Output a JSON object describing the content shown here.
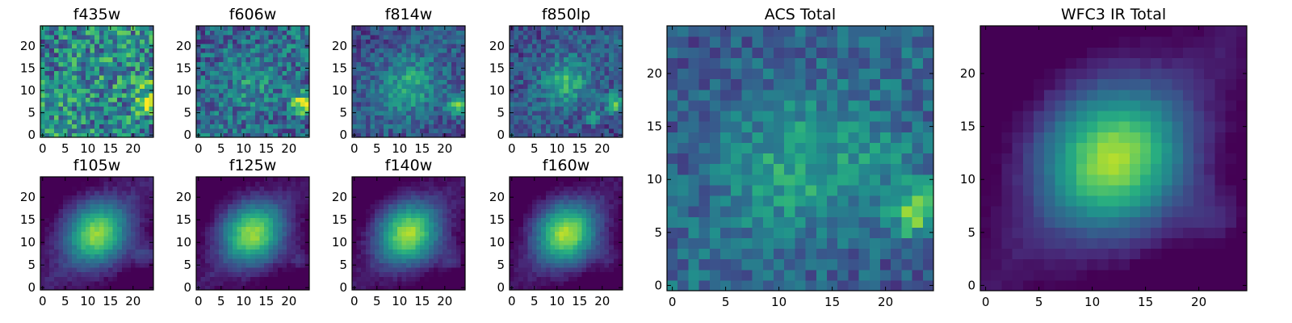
{
  "figure": {
    "background": "#ffffff",
    "colormap": "viridis",
    "colormap_stops": [
      "#440154",
      "#472d7b",
      "#3b528b",
      "#2c728e",
      "#21918c",
      "#28ae80",
      "#5ec962",
      "#addc30",
      "#fde725"
    ]
  },
  "chart_data": [
    {
      "type": "heatmap",
      "title": "f435w",
      "grid": [
        25,
        25
      ],
      "xticks": [
        0,
        5,
        10,
        15,
        20
      ],
      "yticks": [
        0,
        5,
        10,
        15,
        20
      ],
      "xlim": [
        -0.5,
        24.5
      ],
      "ylim": [
        -0.5,
        24.5
      ],
      "sources": [
        {
          "x": 23,
          "y": 7,
          "amp": 0.5,
          "sigma": 1.6
        },
        {
          "x": 23,
          "y": 11,
          "amp": 0.2,
          "sigma": 1.5
        }
      ],
      "noise": 0.3,
      "base": 0.5
    },
    {
      "type": "heatmap",
      "title": "f606w",
      "grid": [
        25,
        25
      ],
      "xticks": [
        0,
        5,
        10,
        15,
        20
      ],
      "yticks": [
        0,
        5,
        10,
        15,
        20
      ],
      "xlim": [
        -0.5,
        24.5
      ],
      "ylim": [
        -0.5,
        24.5
      ],
      "sources": [
        {
          "x": 23,
          "y": 7,
          "amp": 0.6,
          "sigma": 1.8
        },
        {
          "x": 12,
          "y": 11,
          "amp": 0.12,
          "sigma": 4
        }
      ],
      "noise": 0.22,
      "base": 0.38
    },
    {
      "type": "heatmap",
      "title": "f814w",
      "grid": [
        25,
        25
      ],
      "xticks": [
        0,
        5,
        10,
        15,
        20
      ],
      "yticks": [
        0,
        5,
        10,
        15,
        20
      ],
      "xlim": [
        -0.5,
        24.5
      ],
      "ylim": [
        -0.5,
        24.5
      ],
      "sources": [
        {
          "x": 23,
          "y": 7,
          "amp": 0.45,
          "sigma": 1.8
        },
        {
          "x": 12,
          "y": 11,
          "amp": 0.3,
          "sigma": 4.5
        }
      ],
      "noise": 0.15,
      "base": 0.3
    },
    {
      "type": "heatmap",
      "title": "f850lp",
      "grid": [
        25,
        25
      ],
      "xticks": [
        0,
        5,
        10,
        15,
        20
      ],
      "yticks": [
        0,
        5,
        10,
        15,
        20
      ],
      "xlim": [
        -0.5,
        24.5
      ],
      "ylim": [
        -0.5,
        24.5
      ],
      "sources": [
        {
          "x": 23,
          "y": 7,
          "amp": 0.5,
          "sigma": 1.6
        },
        {
          "x": 12,
          "y": 12,
          "amp": 0.35,
          "sigma": 3.5
        },
        {
          "x": 18,
          "y": 4,
          "amp": 0.35,
          "sigma": 1.0
        }
      ],
      "noise": 0.15,
      "base": 0.3
    },
    {
      "type": "heatmap",
      "title": "f105w",
      "grid": [
        25,
        25
      ],
      "xticks": [
        0,
        5,
        10,
        15,
        20
      ],
      "yticks": [
        0,
        5,
        10,
        15,
        20
      ],
      "xlim": [
        -0.5,
        24.5
      ],
      "ylim": [
        -0.5,
        24.5
      ],
      "sources": [
        {
          "x": 12,
          "y": 12,
          "amp": 0.75,
          "sigma": 5
        },
        {
          "x": 23,
          "y": 7,
          "amp": 0.25,
          "sigma": 2
        }
      ],
      "noise": 0.04,
      "base": 0.1
    },
    {
      "type": "heatmap",
      "title": "f125w",
      "grid": [
        25,
        25
      ],
      "xticks": [
        0,
        5,
        10,
        15,
        20
      ],
      "yticks": [
        0,
        5,
        10,
        15,
        20
      ],
      "xlim": [
        -0.5,
        24.5
      ],
      "ylim": [
        -0.5,
        24.5
      ],
      "sources": [
        {
          "x": 12,
          "y": 12,
          "amp": 0.78,
          "sigma": 5
        },
        {
          "x": 23,
          "y": 6,
          "amp": 0.22,
          "sigma": 2
        }
      ],
      "noise": 0.04,
      "base": 0.08
    },
    {
      "type": "heatmap",
      "title": "f140w",
      "grid": [
        25,
        25
      ],
      "xticks": [
        0,
        5,
        10,
        15,
        20
      ],
      "yticks": [
        0,
        5,
        10,
        15,
        20
      ],
      "xlim": [
        -0.5,
        24.5
      ],
      "ylim": [
        -0.5,
        24.5
      ],
      "sources": [
        {
          "x": 12,
          "y": 12,
          "amp": 0.8,
          "sigma": 5
        },
        {
          "x": 22,
          "y": 6,
          "amp": 0.2,
          "sigma": 2.2
        }
      ],
      "noise": 0.04,
      "base": 0.08
    },
    {
      "type": "heatmap",
      "title": "f160w",
      "grid": [
        25,
        25
      ],
      "xticks": [
        0,
        5,
        10,
        15,
        20
      ],
      "yticks": [
        0,
        5,
        10,
        15,
        20
      ],
      "xlim": [
        -0.5,
        24.5
      ],
      "ylim": [
        -0.5,
        24.5
      ],
      "sources": [
        {
          "x": 12,
          "y": 12,
          "amp": 0.82,
          "sigma": 5
        },
        {
          "x": 22,
          "y": 6,
          "amp": 0.18,
          "sigma": 2.2
        }
      ],
      "noise": 0.04,
      "base": 0.07
    },
    {
      "type": "heatmap",
      "title": "ACS Total",
      "grid": [
        25,
        25
      ],
      "xticks": [
        0,
        5,
        10,
        15,
        20
      ],
      "yticks": [
        0,
        5,
        10,
        15,
        20
      ],
      "xlim": [
        -0.5,
        24.5
      ],
      "ylim": [
        -0.5,
        24.5
      ],
      "sources": [
        {
          "x": 23,
          "y": 7,
          "amp": 0.5,
          "sigma": 1.8
        },
        {
          "x": 12,
          "y": 11,
          "amp": 0.25,
          "sigma": 4.5
        },
        {
          "x": 20,
          "y": 12,
          "amp": 0.15,
          "sigma": 2
        }
      ],
      "noise": 0.14,
      "base": 0.35
    },
    {
      "type": "heatmap",
      "title": "WFC3 IR Total",
      "grid": [
        25,
        25
      ],
      "xticks": [
        0,
        5,
        10,
        15,
        20
      ],
      "yticks": [
        0,
        5,
        10,
        15,
        20
      ],
      "xlim": [
        -0.5,
        24.5
      ],
      "ylim": [
        -0.5,
        24.5
      ],
      "sources": [
        {
          "x": 12,
          "y": 12,
          "amp": 0.82,
          "sigma": 5
        },
        {
          "x": 22,
          "y": 6,
          "amp": 0.2,
          "sigma": 2.2
        }
      ],
      "noise": 0.02,
      "base": 0.06
    }
  ]
}
